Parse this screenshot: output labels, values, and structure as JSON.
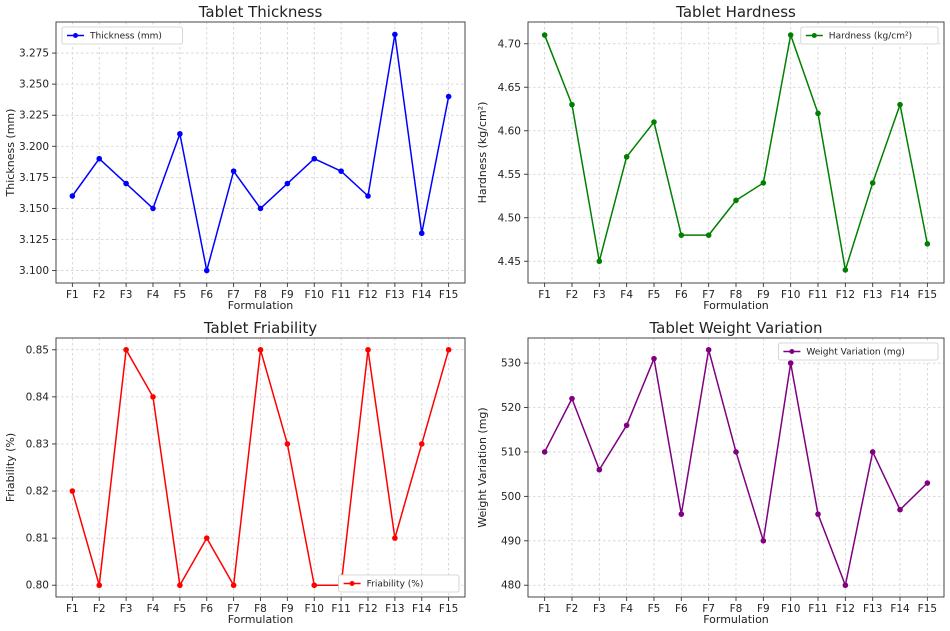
{
  "chart_data": [
    {
      "type": "line",
      "title": "Tablet Thickness",
      "xlabel": "Formulation",
      "ylabel": "Thickness (mm)",
      "categories": [
        "F1",
        "F2",
        "F3",
        "F4",
        "F5",
        "F6",
        "F7",
        "F8",
        "F9",
        "F10",
        "F11",
        "F12",
        "F13",
        "F14",
        "F15"
      ],
      "series": [
        {
          "name": "Thickness (mm)",
          "values": [
            3.16,
            3.19,
            3.17,
            3.15,
            3.21,
            3.1,
            3.18,
            3.15,
            3.17,
            3.19,
            3.18,
            3.16,
            3.29,
            3.13,
            3.24
          ],
          "color": "#0000ff"
        }
      ],
      "ylim": [
        3.09,
        3.3
      ],
      "yticks": [
        3.1,
        3.125,
        3.15,
        3.175,
        3.2,
        3.225,
        3.25,
        3.275
      ],
      "ytick_labels": [
        "3.100",
        "3.125",
        "3.150",
        "3.175",
        "3.200",
        "3.225",
        "3.250",
        "3.275"
      ],
      "grid": true,
      "legend": "top-left"
    },
    {
      "type": "line",
      "title": "Tablet Hardness",
      "xlabel": "Formulation",
      "ylabel": "Hardness (kg/cm²)",
      "categories": [
        "F1",
        "F2",
        "F3",
        "F4",
        "F5",
        "F6",
        "F7",
        "F8",
        "F9",
        "F10",
        "F11",
        "F12",
        "F13",
        "F14",
        "F15"
      ],
      "series": [
        {
          "name": "Hardness (kg/cm²)",
          "values": [
            4.71,
            4.63,
            4.45,
            4.57,
            4.61,
            4.48,
            4.48,
            4.52,
            4.54,
            4.71,
            4.62,
            4.44,
            4.54,
            4.63,
            4.47
          ],
          "color": "#008000"
        }
      ],
      "ylim": [
        4.425,
        4.725
      ],
      "yticks": [
        4.45,
        4.5,
        4.55,
        4.6,
        4.65,
        4.7
      ],
      "ytick_labels": [
        "4.45",
        "4.50",
        "4.55",
        "4.60",
        "4.65",
        "4.70"
      ],
      "grid": true,
      "legend": "top-right"
    },
    {
      "type": "line",
      "title": "Tablet Friability",
      "xlabel": "Formulation",
      "ylabel": "Friability (%)",
      "categories": [
        "F1",
        "F2",
        "F3",
        "F4",
        "F5",
        "F6",
        "F7",
        "F8",
        "F9",
        "F10",
        "F11",
        "F12",
        "F13",
        "F14",
        "F15"
      ],
      "series": [
        {
          "name": "Friability (%)",
          "values": [
            0.82,
            0.8,
            0.85,
            0.84,
            0.8,
            0.81,
            0.8,
            0.85,
            0.83,
            0.8,
            0.8,
            0.85,
            0.81,
            0.83,
            0.85
          ],
          "color": "#ff0000"
        }
      ],
      "ylim": [
        0.7975,
        0.8525
      ],
      "yticks": [
        0.8,
        0.81,
        0.82,
        0.83,
        0.84,
        0.85
      ],
      "ytick_labels": [
        "0.80",
        "0.81",
        "0.82",
        "0.83",
        "0.84",
        "0.85"
      ],
      "grid": true,
      "legend": "bottom-right"
    },
    {
      "type": "line",
      "title": "Tablet Weight Variation",
      "xlabel": "Formulation",
      "ylabel": "Weight Variation (mg)",
      "categories": [
        "F1",
        "F2",
        "F3",
        "F4",
        "F5",
        "F6",
        "F7",
        "F8",
        "F9",
        "F10",
        "F11",
        "F12",
        "F13",
        "F14",
        "F15"
      ],
      "series": [
        {
          "name": "Weight Variation (mg)",
          "values": [
            510,
            522,
            506,
            516,
            531,
            496,
            533,
            510,
            490,
            530,
            496,
            480,
            510,
            497,
            503
          ],
          "color": "#800080"
        }
      ],
      "ylim": [
        477.35,
        535.65
      ],
      "yticks": [
        480,
        490,
        500,
        510,
        520,
        530
      ],
      "ytick_labels": [
        "480",
        "490",
        "500",
        "510",
        "520",
        "530"
      ],
      "grid": true,
      "legend": "top-right"
    }
  ]
}
